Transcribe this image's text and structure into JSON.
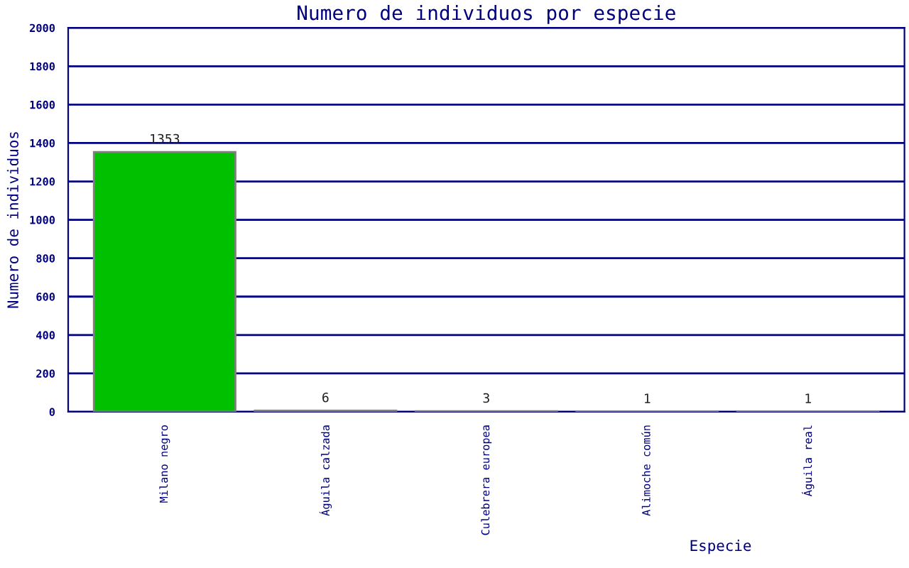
{
  "chart_data": {
    "type": "bar",
    "title": "Numero de individuos por especie",
    "xlabel": "Especie",
    "ylabel": "Numero de individuos",
    "categories": [
      "Milano negro",
      "Águila calzada",
      "Culebrera europea",
      "Alimoche común",
      "Águila real"
    ],
    "values": [
      1353,
      6,
      3,
      1,
      1
    ],
    "color": "#00c000",
    "ylim": [
      0,
      2000
    ],
    "yticks": [
      0,
      200,
      400,
      600,
      800,
      1000,
      1200,
      1400,
      1600,
      1800,
      2000
    ],
    "grid": "y",
    "data_labels": true,
    "legend": false
  }
}
